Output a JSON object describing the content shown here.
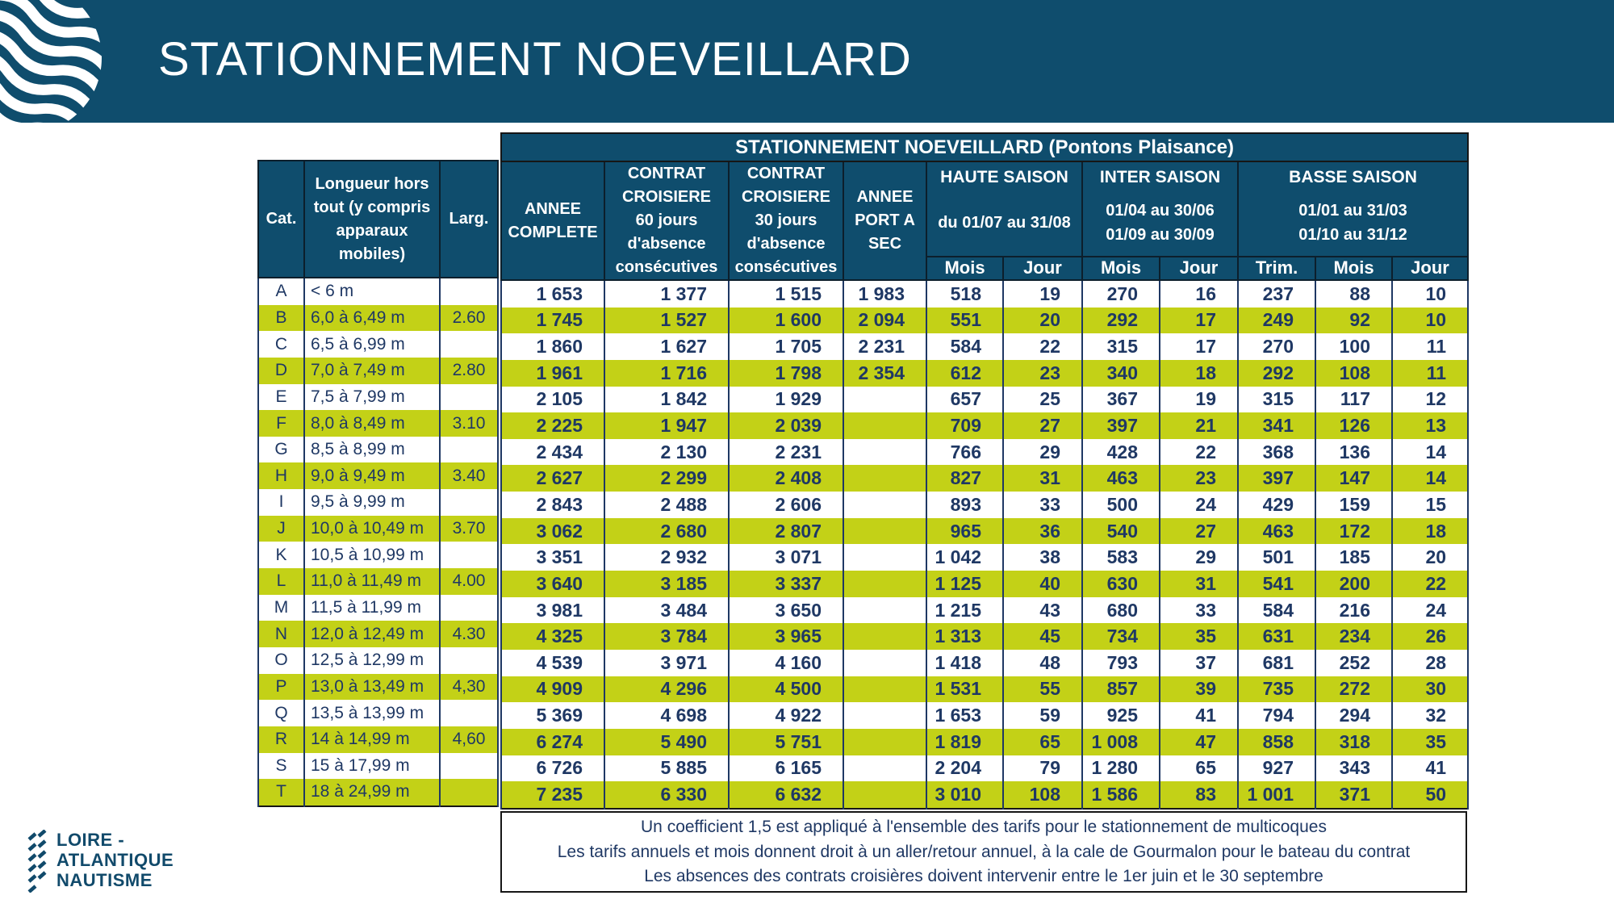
{
  "banner": {
    "title": "STATIONNEMENT NOEVEILLARD"
  },
  "colors": {
    "banner": "#0F4D6D",
    "row_highlight": "#C3D117",
    "text_navy": "#1F3864"
  },
  "table": {
    "title": "STATIONNEMENT NOEVEILLARD (Pontons Plaisance)",
    "left_headers": {
      "cat": "Cat.",
      "longueur": "Longueur hors\ntout (y compris\napparaux\nmobiles)",
      "larg": "Larg."
    },
    "columns": {
      "annee_complete": "ANNEE\nCOMPLETE",
      "contrat_60": "CONTRAT\nCROISIERE\n60 jours\nd'absence\nconsécutives",
      "contrat_30": "CONTRAT\nCROISIERE\n30 jours\nd'absence\nconsécutives",
      "port_a_sec": "ANNEE\nPORT A\nSEC"
    },
    "seasons": {
      "haute": {
        "label": "HAUTE SAISON",
        "dates": "du 01/07 au 31/08"
      },
      "inter": {
        "label": "INTER SAISON",
        "dates": "01/04 au 30/06\n01/09 au 30/09"
      },
      "basse": {
        "label": "BASSE SAISON",
        "dates": "01/01 au 31/03\n01/10 au 31/12"
      }
    },
    "subheaders": [
      "Mois",
      "Jour",
      "Mois",
      "Jour",
      "Trim.",
      "Mois",
      "Jour"
    ],
    "rows": [
      [
        "A",
        "< 6 m",
        "",
        "1 653",
        "1 377",
        "1 515",
        "1 983",
        "518",
        "19",
        "270",
        "16",
        "237",
        "88",
        "10"
      ],
      [
        "B",
        "6,0 à 6,49 m",
        "2.60",
        "1 745",
        "1 527",
        "1 600",
        "2 094",
        "551",
        "20",
        "292",
        "17",
        "249",
        "92",
        "10"
      ],
      [
        "C",
        "6,5 à 6,99 m",
        "",
        "1 860",
        "1 627",
        "1 705",
        "2 231",
        "584",
        "22",
        "315",
        "17",
        "270",
        "100",
        "11"
      ],
      [
        "D",
        "7,0 à 7,49 m",
        "2.80",
        "1 961",
        "1 716",
        "1 798",
        "2 354",
        "612",
        "23",
        "340",
        "18",
        "292",
        "108",
        "11"
      ],
      [
        "E",
        "7,5 à 7,99 m",
        "",
        "2 105",
        "1 842",
        "1 929",
        "",
        "657",
        "25",
        "367",
        "19",
        "315",
        "117",
        "12"
      ],
      [
        "F",
        "8,0 à 8,49 m",
        "3.10",
        "2 225",
        "1 947",
        "2 039",
        "",
        "709",
        "27",
        "397",
        "21",
        "341",
        "126",
        "13"
      ],
      [
        "G",
        "8,5 à 8,99 m",
        "",
        "2 434",
        "2 130",
        "2 231",
        "",
        "766",
        "29",
        "428",
        "22",
        "368",
        "136",
        "14"
      ],
      [
        "H",
        "9,0 à 9,49 m",
        "3.40",
        "2 627",
        "2 299",
        "2 408",
        "",
        "827",
        "31",
        "463",
        "23",
        "397",
        "147",
        "14"
      ],
      [
        "I",
        "9,5 à 9,99 m",
        "",
        "2 843",
        "2 488",
        "2 606",
        "",
        "893",
        "33",
        "500",
        "24",
        "429",
        "159",
        "15"
      ],
      [
        "J",
        "10,0 à 10,49 m",
        "3.70",
        "3 062",
        "2 680",
        "2 807",
        "",
        "965",
        "36",
        "540",
        "27",
        "463",
        "172",
        "18"
      ],
      [
        "K",
        "10,5 à 10,99 m",
        "",
        "3 351",
        "2 932",
        "3 071",
        "",
        "1 042",
        "38",
        "583",
        "29",
        "501",
        "185",
        "20"
      ],
      [
        "L",
        "11,0 à 11,49 m",
        "4.00",
        "3 640",
        "3 185",
        "3 337",
        "",
        "1 125",
        "40",
        "630",
        "31",
        "541",
        "200",
        "22"
      ],
      [
        "M",
        "11,5 à 11,99 m",
        "",
        "3 981",
        "3 484",
        "3 650",
        "",
        "1 215",
        "43",
        "680",
        "33",
        "584",
        "216",
        "24"
      ],
      [
        "N",
        "12,0 à 12,49 m",
        "4.30",
        "4 325",
        "3 784",
        "3 965",
        "",
        "1 313",
        "45",
        "734",
        "35",
        "631",
        "234",
        "26"
      ],
      [
        "O",
        "12,5 à 12,99 m",
        "",
        "4 539",
        "3 971",
        "4 160",
        "",
        "1 418",
        "48",
        "793",
        "37",
        "681",
        "252",
        "28"
      ],
      [
        "P",
        "13,0 à 13,49 m",
        "4,30",
        "4 909",
        "4 296",
        "4 500",
        "",
        "1 531",
        "55",
        "857",
        "39",
        "735",
        "272",
        "30"
      ],
      [
        "Q",
        "13,5 à 13,99 m",
        "",
        "5 369",
        "4 698",
        "4 922",
        "",
        "1 653",
        "59",
        "925",
        "41",
        "794",
        "294",
        "32"
      ],
      [
        "R",
        "14 à 14,99 m",
        "4,60",
        "6 274",
        "5 490",
        "5 751",
        "",
        "1 819",
        "65",
        "1 008",
        "47",
        "858",
        "318",
        "35"
      ],
      [
        "S",
        "15 à 17,99 m",
        "",
        "6 726",
        "5 885",
        "6 165",
        "",
        "2 204",
        "79",
        "1 280",
        "65",
        "927",
        "343",
        "41"
      ],
      [
        "T",
        "18 à 24,99 m",
        "",
        "7 235",
        "6 330",
        "6 632",
        "",
        "3 010",
        "108",
        "1 586",
        "83",
        "1 001",
        "371",
        "50"
      ]
    ]
  },
  "notes": [
    "Un coefficient 1,5 est appliqué à l'ensemble des tarifs pour le stationnement de multicoques",
    "Les tarifs annuels et mois donnent droit à un aller/retour annuel, à la cale de Gourmalon pour le bateau du contrat",
    "Les absences des contrats croisières doivent intervenir entre le 1er juin et le 30 septembre"
  ],
  "footer_logo": {
    "line1": "LOIRE -",
    "line2": "ATLANTIQUE",
    "line3": "NAUTISME"
  }
}
